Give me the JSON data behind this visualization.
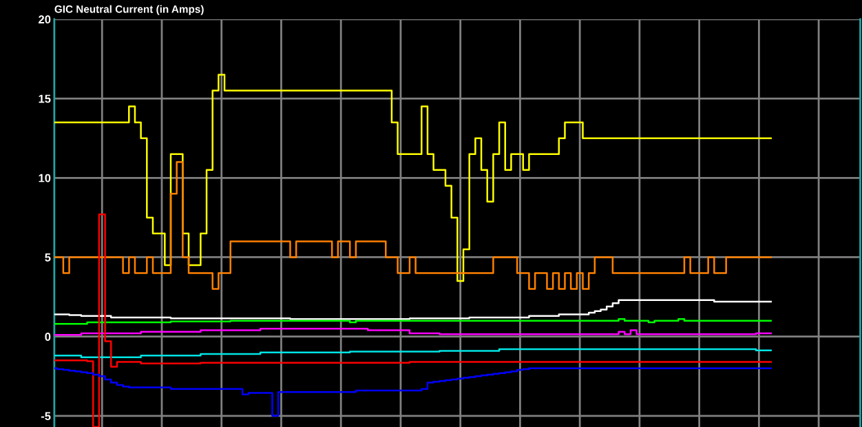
{
  "chart_data": {
    "type": "step",
    "title": "GIC Neutral Current (in Amps)",
    "categories": [
      null,
      null,
      null,
      null,
      null,
      null,
      null,
      null,
      null,
      null,
      null,
      null,
      null,
      null,
      null,
      null,
      null,
      null,
      null,
      null,
      null,
      null,
      null,
      null,
      null,
      null,
      null,
      null,
      null,
      null,
      null,
      null,
      null,
      null,
      null,
      null,
      null,
      null,
      null,
      null,
      null,
      null,
      null,
      null,
      null,
      null,
      null,
      null,
      null,
      null,
      null,
      null,
      null,
      null,
      null,
      null,
      null,
      null,
      null,
      null,
      null,
      null,
      null,
      null,
      null,
      null,
      null,
      null,
      null,
      null,
      null,
      null,
      null,
      null,
      null,
      null,
      null,
      null,
      null,
      null,
      null,
      null,
      null,
      null,
      null,
      null,
      null,
      null,
      null,
      null,
      null,
      null,
      null,
      null,
      null,
      null,
      null,
      null,
      null,
      null,
      null,
      null,
      null,
      null,
      null,
      null,
      null,
      null,
      null,
      null,
      null,
      null,
      null,
      null,
      null,
      null,
      null,
      null,
      null,
      null,
      null
    ],
    "ylim": [
      -5.7,
      20
    ],
    "yticks": [
      -5,
      0,
      5,
      10,
      15,
      20
    ],
    "grid": true,
    "tick_labels": "y",
    "series": [
      {
        "color": "#ffff00",
        "values": [
          13.5,
          13.5,
          13.5,
          13.5,
          13.5,
          13.5,
          13.5,
          13.5,
          13.5,
          13.5,
          13.5,
          13.5,
          13.5,
          14.5,
          13.5,
          12.5,
          7.5,
          6.5,
          6.5,
          4.5,
          11.5,
          11.5,
          6.5,
          4.5,
          4.5,
          6.5,
          10.5,
          15.5,
          16.5,
          15.5,
          15.5,
          15.5,
          15.5,
          15.5,
          15.5,
          15.5,
          15.5,
          15.5,
          15.5,
          15.5,
          15.5,
          15.5,
          15.5,
          15.5,
          15.5,
          15.5,
          15.5,
          15.5,
          15.5,
          15.5,
          15.5,
          15.5,
          15.5,
          15.5,
          15.5,
          15.5,
          15.5,
          13.5,
          11.5,
          11.5,
          11.5,
          11.5,
          14.5,
          11.5,
          10.5,
          10.5,
          9.5,
          7.5,
          3.5,
          5.5,
          11.5,
          12.5,
          10.5,
          8.5,
          11.5,
          13.5,
          10.5,
          11.5,
          11.5,
          10.5,
          11.5,
          11.5,
          11.5,
          11.5,
          11.5,
          12.5,
          13.5,
          13.5,
          13.5,
          12.5,
          12.5,
          12.5,
          12.5,
          12.5,
          12.5,
          12.5,
          12.5,
          12.5,
          12.5,
          12.5,
          12.5,
          12.5,
          12.5,
          12.5,
          12.5,
          12.5,
          12.5,
          12.5,
          12.5,
          12.5,
          12.5,
          12.5,
          12.5,
          12.5,
          12.5,
          12.5,
          12.5,
          12.5,
          12.5,
          12.5,
          12.5
        ]
      },
      {
        "color": "#ff8000",
        "values": [
          5,
          5,
          4,
          5,
          5,
          5,
          5,
          5,
          5,
          5,
          5,
          5,
          4,
          5,
          4,
          4,
          5,
          4,
          4,
          4,
          9,
          11,
          5,
          4,
          4,
          4,
          4,
          3,
          4,
          4,
          6,
          6,
          6,
          6,
          6,
          6,
          6,
          6,
          6,
          6,
          5,
          6,
          6,
          6,
          6,
          6,
          6,
          5,
          6,
          6,
          5,
          6,
          6,
          6,
          6,
          6,
          5,
          5,
          4,
          4,
          5,
          4,
          4,
          4,
          4,
          4,
          4,
          4,
          4,
          4,
          4,
          4,
          4,
          4,
          5,
          5,
          5,
          5,
          4,
          4,
          3,
          4,
          4,
          3,
          4,
          3,
          4,
          3,
          4,
          3,
          4,
          5,
          5,
          5,
          4,
          4,
          4,
          4,
          4,
          4,
          4,
          4,
          4,
          4,
          4,
          4,
          5,
          4,
          4,
          4,
          5,
          4,
          4,
          5,
          5,
          5,
          5,
          5,
          5,
          5,
          5
        ]
      },
      {
        "color": "#ffffff",
        "values": [
          1.4,
          1.4,
          1.4,
          1.35,
          1.35,
          1.3,
          1.3,
          1.3,
          1.3,
          1.3,
          1.2,
          1.2,
          1.2,
          1.2,
          1.2,
          1.2,
          1.2,
          1.2,
          1.2,
          1.2,
          1.15,
          1.15,
          1.15,
          1.15,
          1.15,
          1.15,
          1.15,
          1.15,
          1.15,
          1.15,
          1.15,
          1.15,
          1.15,
          1.15,
          1.15,
          1.15,
          1.15,
          1.15,
          1.15,
          1.15,
          1.1,
          1.1,
          1.1,
          1.1,
          1.1,
          1.1,
          1.1,
          1.1,
          1.1,
          1.1,
          1.1,
          1.1,
          1.1,
          1.1,
          1.1,
          1.1,
          1.1,
          1.1,
          1.1,
          1.1,
          1.15,
          1.15,
          1.15,
          1.15,
          1.15,
          1.15,
          1.15,
          1.15,
          1.15,
          1.15,
          1.2,
          1.2,
          1.2,
          1.2,
          1.2,
          1.2,
          1.2,
          1.2,
          1.2,
          1.2,
          1.3,
          1.3,
          1.3,
          1.3,
          1.3,
          1.4,
          1.4,
          1.4,
          1.4,
          1.4,
          1.5,
          1.6,
          1.7,
          1.9,
          2.1,
          2.3,
          2.3,
          2.3,
          2.3,
          2.3,
          2.3,
          2.3,
          2.3,
          2.3,
          2.3,
          2.3,
          2.3,
          2.3,
          2.3,
          2.3,
          2.3,
          2.2,
          2.2,
          2.2,
          2.2,
          2.2,
          2.2,
          2.2,
          2.2,
          2.2,
          2.2
        ]
      },
      {
        "color": "#00ff00",
        "values": [
          0.8,
          0.8,
          0.8,
          0.8,
          0.8,
          0.8,
          0.9,
          0.9,
          0.9,
          0.9,
          0.9,
          0.9,
          0.9,
          0.9,
          0.9,
          0.9,
          0.9,
          0.9,
          0.9,
          0.9,
          0.95,
          0.95,
          0.95,
          0.95,
          0.95,
          0.95,
          0.95,
          0.95,
          0.95,
          0.95,
          1.0,
          1.0,
          1.0,
          1.0,
          1.0,
          1.0,
          1.0,
          1.0,
          1.0,
          1.0,
          1.0,
          1.0,
          1.0,
          1.0,
          1.0,
          1.0,
          1.0,
          1.0,
          1.0,
          1.0,
          0.9,
          1.0,
          1.0,
          1.0,
          1.0,
          1.0,
          1.0,
          1.0,
          1.0,
          1.0,
          1.0,
          1.0,
          1.0,
          1.0,
          1.0,
          1.0,
          1.0,
          1.0,
          1.0,
          1.0,
          1.0,
          1.0,
          1.0,
          1.0,
          1.0,
          1.0,
          1.0,
          1.0,
          1.0,
          1.0,
          1.0,
          1.0,
          1.0,
          1.0,
          1.0,
          1.0,
          1.0,
          1.0,
          1.0,
          1.0,
          1.0,
          1.0,
          1.0,
          1.0,
          1.0,
          1.1,
          1.0,
          1.0,
          1.0,
          1.0,
          0.9,
          1.0,
          1.0,
          1.0,
          1.0,
          1.1,
          1.0,
          1.0,
          1.0,
          1.0,
          1.0,
          1.0,
          1.0,
          1.0,
          1.0,
          1.0,
          1.0,
          1.0,
          1.0,
          1.0,
          1.0
        ]
      },
      {
        "color": "#ff00ff",
        "values": [
          0.1,
          0.1,
          0.1,
          0.1,
          0.1,
          0.2,
          0.2,
          0.2,
          0.2,
          0.2,
          0.2,
          0.2,
          0.2,
          0.2,
          0.2,
          0.3,
          0.3,
          0.3,
          0.3,
          0.3,
          0.3,
          0.3,
          0.3,
          0.3,
          0.3,
          0.4,
          0.4,
          0.4,
          0.4,
          0.4,
          0.4,
          0.4,
          0.4,
          0.4,
          0.4,
          0.5,
          0.5,
          0.5,
          0.5,
          0.5,
          0.5,
          0.5,
          0.5,
          0.5,
          0.5,
          0.5,
          0.5,
          0.5,
          0.5,
          0.5,
          0.5,
          0.5,
          0.5,
          0.4,
          0.4,
          0.4,
          0.4,
          0.4,
          0.4,
          0.4,
          0.2,
          0.2,
          0.2,
          0.2,
          0.2,
          0.15,
          0.15,
          0.15,
          0.15,
          0.15,
          0.15,
          0.15,
          0.15,
          0.15,
          0.15,
          0.15,
          0.15,
          0.15,
          0.15,
          0.15,
          0.15,
          0.15,
          0.15,
          0.15,
          0.15,
          0.15,
          0.15,
          0.15,
          0.15,
          0.15,
          0.15,
          0.15,
          0.15,
          0.15,
          0.15,
          0.3,
          0.15,
          0.4,
          0.15,
          0.15,
          0.15,
          0.15,
          0.15,
          0.15,
          0.15,
          0.15,
          0.15,
          0.15,
          0.15,
          0.15,
          0.15,
          0.15,
          0.15,
          0.15,
          0.15,
          0.15,
          0.15,
          0.15,
          0.2,
          0.2,
          0.2
        ]
      },
      {
        "color": "#00e5e5",
        "values": [
          -1.2,
          -1.2,
          -1.2,
          -1.2,
          -1.2,
          -1.3,
          -1.3,
          -1.3,
          -1.3,
          -1.3,
          -1.3,
          -1.3,
          -1.3,
          -1.3,
          -1.3,
          -1.2,
          -1.2,
          -1.2,
          -1.2,
          -1.2,
          -1.2,
          -1.2,
          -1.2,
          -1.2,
          -1.2,
          -1.1,
          -1.1,
          -1.1,
          -1.1,
          -1.1,
          -1.1,
          -1.1,
          -1.1,
          -1.1,
          -1.1,
          -1.0,
          -1.0,
          -1.0,
          -1.0,
          -1.0,
          -1.0,
          -1.0,
          -1.0,
          -1.0,
          -1.0,
          -1.0,
          -1.0,
          -1.0,
          -1.0,
          -1.0,
          -0.95,
          -0.95,
          -0.95,
          -0.95,
          -0.95,
          -0.95,
          -0.95,
          -0.95,
          -0.95,
          -0.95,
          -0.95,
          -0.95,
          -0.95,
          -0.95,
          -0.95,
          -0.9,
          -0.9,
          -0.9,
          -0.9,
          -0.9,
          -0.9,
          -0.9,
          -0.9,
          -0.9,
          -0.9,
          -0.8,
          -0.8,
          -0.8,
          -0.8,
          -0.8,
          -0.8,
          -0.8,
          -0.8,
          -0.8,
          -0.8,
          -0.8,
          -0.8,
          -0.8,
          -0.8,
          -0.8,
          -0.8,
          -0.8,
          -0.8,
          -0.8,
          -0.8,
          -0.8,
          -0.8,
          -0.8,
          -0.8,
          -0.8,
          -0.8,
          -0.8,
          -0.8,
          -0.8,
          -0.8,
          -0.8,
          -0.8,
          -0.8,
          -0.8,
          -0.8,
          -0.8,
          -0.8,
          -0.8,
          -0.8,
          -0.8,
          -0.8,
          -0.8,
          -0.8,
          -0.87,
          -0.87,
          -0.87
        ]
      },
      {
        "color": "#ff0000",
        "values": [
          -1.5,
          -1.5,
          -1.5,
          -1.5,
          -1.5,
          -1.5,
          -1.55,
          -5.7,
          7.7,
          -0.3,
          -1.9,
          -1.6,
          -1.6,
          -1.6,
          -1.6,
          -1.7,
          -1.7,
          -1.7,
          -1.7,
          -1.7,
          -1.7,
          -1.7,
          -1.7,
          -1.7,
          -1.7,
          -1.65,
          -1.65,
          -1.65,
          -1.65,
          -1.65,
          -1.65,
          -1.65,
          -1.65,
          -1.65,
          -1.65,
          -1.65,
          -1.65,
          -1.65,
          -1.65,
          -1.65,
          -1.65,
          -1.65,
          -1.65,
          -1.65,
          -1.65,
          -1.65,
          -1.65,
          -1.65,
          -1.65,
          -1.65,
          -1.65,
          -1.65,
          -1.65,
          -1.65,
          -1.65,
          -1.65,
          -1.65,
          -1.65,
          -1.65,
          -1.65,
          -1.6,
          -1.6,
          -1.6,
          -1.6,
          -1.6,
          -1.6,
          -1.6,
          -1.6,
          -1.6,
          -1.6,
          -1.6,
          -1.6,
          -1.6,
          -1.6,
          -1.6,
          -1.6,
          -1.6,
          -1.6,
          -1.6,
          -1.6,
          -1.6,
          -1.6,
          -1.6,
          -1.6,
          -1.6,
          -1.6,
          -1.6,
          -1.6,
          -1.6,
          -1.6,
          -1.6,
          -1.6,
          -1.6,
          -1.6,
          -1.6,
          -1.6,
          -1.6,
          -1.6,
          -1.6,
          -1.6,
          -1.6,
          -1.6,
          -1.6,
          -1.6,
          -1.6,
          -1.6,
          -1.6,
          -1.6,
          -1.6,
          -1.6,
          -1.6,
          -1.6,
          -1.6,
          -1.6,
          -1.6,
          -1.6,
          -1.6,
          -1.6,
          -1.6,
          -1.6,
          -1.6
        ]
      },
      {
        "color": "#0000ff",
        "values": [
          -2.0,
          -2.05,
          -2.1,
          -2.15,
          -2.2,
          -2.25,
          -2.3,
          -2.4,
          -2.5,
          -2.7,
          -2.9,
          -3.05,
          -3.15,
          -3.2,
          -3.2,
          -3.2,
          -3.2,
          -3.2,
          -3.2,
          -3.2,
          -3.3,
          -3.3,
          -3.3,
          -3.3,
          -3.3,
          -3.3,
          -3.3,
          -3.3,
          -3.3,
          -3.3,
          -3.3,
          -3.3,
          -3.65,
          -3.55,
          -3.55,
          -3.55,
          -3.55,
          -5.0,
          -3.5,
          -3.5,
          -3.5,
          -3.5,
          -3.5,
          -3.5,
          -3.5,
          -3.5,
          -3.5,
          -3.5,
          -3.5,
          -3.5,
          -3.5,
          -3.4,
          -3.4,
          -3.4,
          -3.4,
          -3.4,
          -3.4,
          -3.4,
          -3.4,
          -3.4,
          -3.4,
          -3.4,
          -3.3,
          -2.9,
          -2.85,
          -2.8,
          -2.75,
          -2.7,
          -2.65,
          -2.6,
          -2.55,
          -2.5,
          -2.45,
          -2.4,
          -2.35,
          -2.3,
          -2.25,
          -2.2,
          -2.1,
          -2.05,
          -2.0,
          -2.0,
          -2.0,
          -2.0,
          -2.0,
          -2.0,
          -2.0,
          -2.0,
          -2.0,
          -2.0,
          -2.0,
          -2.0,
          -2.0,
          -2.0,
          -2.0,
          -2.0,
          -2.0,
          -2.0,
          -2.0,
          -2.0,
          -2.0,
          -2.0,
          -2.0,
          -2.0,
          -2.0,
          -2.0,
          -2.0,
          -2.0,
          -2.0,
          -2.0,
          -2.0,
          -2.0,
          -2.0,
          -2.0,
          -2.0,
          -2.0,
          -2.0,
          -2.0,
          -2.0,
          -2.0,
          -2.0
        ]
      }
    ]
  }
}
